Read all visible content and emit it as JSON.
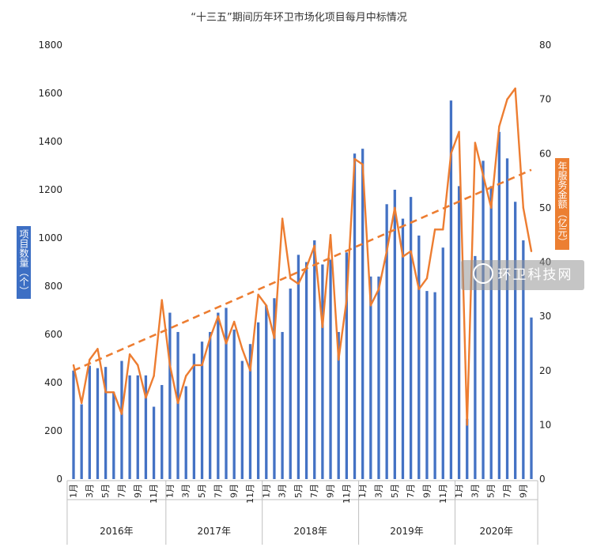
{
  "chart_data": {
    "type": "bar+line",
    "title": "“十三五”期间历年环卫市场化项目每月中标情况",
    "ylabel_left": "项目数量（个）",
    "ylabel_right": "年服务金额（亿元）",
    "y_left_range": [
      0,
      1800
    ],
    "y_left_ticks": [
      0,
      200,
      400,
      600,
      800,
      1000,
      1200,
      1400,
      1600,
      1800
    ],
    "y_right_range": [
      0,
      80
    ],
    "y_right_ticks": [
      0,
      10,
      20,
      30,
      40,
      50,
      60,
      70,
      80
    ],
    "years": [
      "2016年",
      "2017年",
      "2018年",
      "2019年",
      "2020年"
    ],
    "months_per_year": [
      12,
      12,
      12,
      12,
      10
    ],
    "month_labels": [
      "1月",
      "",
      "3月",
      "",
      "5月",
      "",
      "7月",
      "",
      "9月",
      "",
      "11月",
      ""
    ],
    "series": [
      {
        "kind": "bar",
        "axis": "left",
        "color": "#4472c4",
        "values": [
          450,
          310,
          470,
          460,
          465,
          360,
          490,
          430,
          430,
          430,
          300,
          390,
          690,
          610,
          385,
          520,
          570,
          610,
          690,
          710,
          620,
          490,
          560,
          650,
          720,
          750,
          610,
          790,
          930,
          900,
          990,
          890,
          910,
          610,
          940,
          1350,
          1370,
          840,
          840,
          1140,
          1200,
          1080,
          1170,
          1010,
          780,
          775,
          960,
          1570,
          1215,
          250,
          925,
          1320,
          1215,
          1440,
          1330,
          1150,
          990,
          670
        ]
      },
      {
        "kind": "line",
        "axis": "right",
        "color": "#ed7d31",
        "values": [
          21,
          14,
          22,
          24,
          16,
          16,
          12,
          23,
          21,
          15,
          19,
          33,
          21,
          14,
          19,
          21,
          21,
          26,
          30,
          25,
          29,
          24,
          20,
          34,
          32,
          26,
          48,
          37,
          36,
          39,
          43,
          28,
          45,
          22,
          33,
          59,
          58,
          32,
          35,
          42,
          50,
          41,
          42,
          35,
          37,
          46,
          46,
          60,
          64,
          10,
          62,
          56,
          50,
          65,
          70,
          72,
          50,
          42
        ]
      },
      {
        "kind": "trendline",
        "axis": "right",
        "color": "#ed7d31",
        "style": "dashed",
        "values": [
          20,
          57
        ]
      }
    ],
    "watermark": "环卫科技网"
  }
}
